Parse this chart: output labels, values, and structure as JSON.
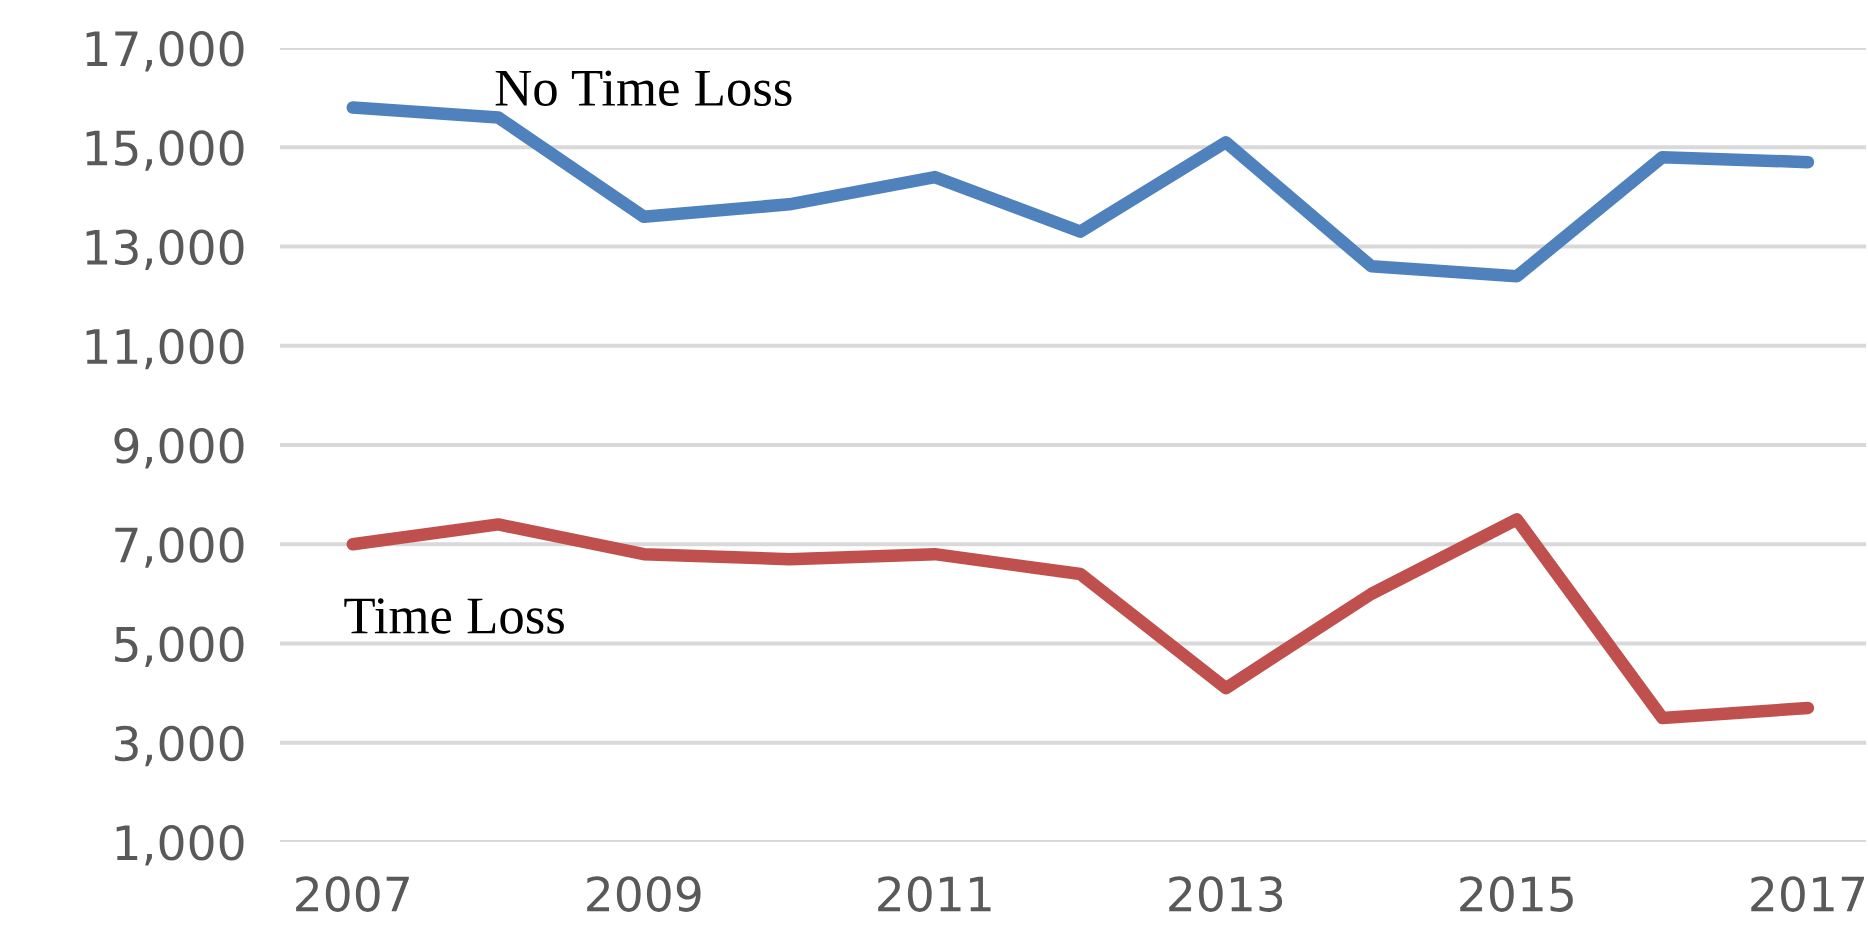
{
  "chart_data": {
    "type": "line",
    "x": [
      2007,
      2008,
      2009,
      2010,
      2011,
      2012,
      2013,
      2014,
      2015,
      2016,
      2017
    ],
    "series": [
      {
        "name": "No Time Loss",
        "color": "#4f81bd",
        "values": [
          15800,
          15600,
          13600,
          13850,
          14400,
          13300,
          15100,
          12600,
          12400,
          14800,
          14700
        ]
      },
      {
        "name": "Time Loss",
        "color": "#c0504d",
        "values": [
          7000,
          7400,
          6800,
          6700,
          6800,
          6400,
          4100,
          6000,
          7500,
          3500,
          3700
        ]
      }
    ],
    "xlim": [
      2006.5,
      2017.4
    ],
    "xticks": [
      2007,
      2009,
      2011,
      2013,
      2015,
      2017
    ],
    "ylim": [
      1000,
      17000
    ],
    "yticks": [
      {
        "value": 1000,
        "label": "1,000"
      },
      {
        "value": 3000,
        "label": "3,000"
      },
      {
        "value": 5000,
        "label": "5,000"
      },
      {
        "value": 7000,
        "label": "7,000"
      },
      {
        "value": 9000,
        "label": "9,000"
      },
      {
        "value": 11000,
        "label": "11,000"
      },
      {
        "value": 13000,
        "label": "13,000"
      },
      {
        "value": 15000,
        "label": "15,000"
      },
      {
        "value": 17000,
        "label": "17,000"
      }
    ],
    "grid": "y",
    "legend": false,
    "marker": "none",
    "line_style": "solid"
  }
}
